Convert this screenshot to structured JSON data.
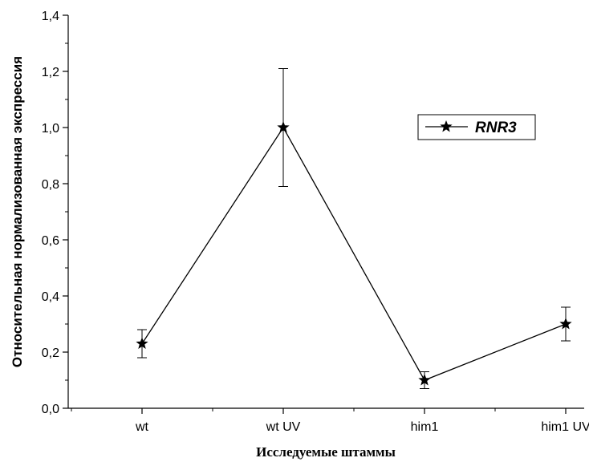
{
  "chart_data": {
    "type": "line",
    "xlabel": "Исследуемые штаммы",
    "ylabel": "Относительная нормализованная экспрессия",
    "categories": [
      "wt",
      "wt UV",
      "him1",
      "him1 UV"
    ],
    "ylim": [
      0,
      1.4
    ],
    "yticks": [
      "0,0",
      "0,2",
      "0,4",
      "0,6",
      "0,8",
      "1,0",
      "1,2",
      "1,4"
    ],
    "grid": false,
    "legend_position": "top-right",
    "series": [
      {
        "name": "RNR3",
        "marker": "star",
        "color": "#000000",
        "values": [
          0.23,
          1.0,
          0.1,
          0.3
        ],
        "error": [
          0.05,
          0.21,
          0.03,
          0.06
        ]
      }
    ]
  }
}
